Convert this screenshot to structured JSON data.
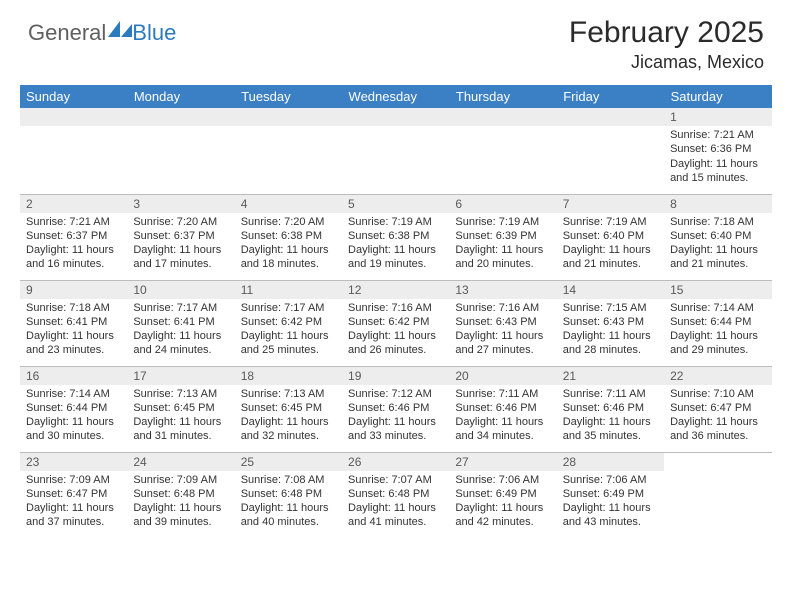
{
  "logo": {
    "general": "General",
    "blue": "Blue"
  },
  "title": "February 2025",
  "subtitle": "Jicamas, Mexico",
  "colors": {
    "header_bg": "#3b7fc4",
    "header_text": "#ffffff",
    "daynum_bg": "#ededed",
    "daynum_text": "#5a5a5a",
    "border": "#bcbcbc",
    "accent": "#2d7bbf"
  },
  "weekdays": [
    "Sunday",
    "Monday",
    "Tuesday",
    "Wednesday",
    "Thursday",
    "Friday",
    "Saturday"
  ],
  "weeks": [
    [
      null,
      null,
      null,
      null,
      null,
      null,
      {
        "n": "1",
        "sunrise": "Sunrise: 7:21 AM",
        "sunset": "Sunset: 6:36 PM",
        "daylight": "Daylight: 11 hours and 15 minutes."
      }
    ],
    [
      {
        "n": "2",
        "sunrise": "Sunrise: 7:21 AM",
        "sunset": "Sunset: 6:37 PM",
        "daylight": "Daylight: 11 hours and 16 minutes."
      },
      {
        "n": "3",
        "sunrise": "Sunrise: 7:20 AM",
        "sunset": "Sunset: 6:37 PM",
        "daylight": "Daylight: 11 hours and 17 minutes."
      },
      {
        "n": "4",
        "sunrise": "Sunrise: 7:20 AM",
        "sunset": "Sunset: 6:38 PM",
        "daylight": "Daylight: 11 hours and 18 minutes."
      },
      {
        "n": "5",
        "sunrise": "Sunrise: 7:19 AM",
        "sunset": "Sunset: 6:38 PM",
        "daylight": "Daylight: 11 hours and 19 minutes."
      },
      {
        "n": "6",
        "sunrise": "Sunrise: 7:19 AM",
        "sunset": "Sunset: 6:39 PM",
        "daylight": "Daylight: 11 hours and 20 minutes."
      },
      {
        "n": "7",
        "sunrise": "Sunrise: 7:19 AM",
        "sunset": "Sunset: 6:40 PM",
        "daylight": "Daylight: 11 hours and 21 minutes."
      },
      {
        "n": "8",
        "sunrise": "Sunrise: 7:18 AM",
        "sunset": "Sunset: 6:40 PM",
        "daylight": "Daylight: 11 hours and 21 minutes."
      }
    ],
    [
      {
        "n": "9",
        "sunrise": "Sunrise: 7:18 AM",
        "sunset": "Sunset: 6:41 PM",
        "daylight": "Daylight: 11 hours and 23 minutes."
      },
      {
        "n": "10",
        "sunrise": "Sunrise: 7:17 AM",
        "sunset": "Sunset: 6:41 PM",
        "daylight": "Daylight: 11 hours and 24 minutes."
      },
      {
        "n": "11",
        "sunrise": "Sunrise: 7:17 AM",
        "sunset": "Sunset: 6:42 PM",
        "daylight": "Daylight: 11 hours and 25 minutes."
      },
      {
        "n": "12",
        "sunrise": "Sunrise: 7:16 AM",
        "sunset": "Sunset: 6:42 PM",
        "daylight": "Daylight: 11 hours and 26 minutes."
      },
      {
        "n": "13",
        "sunrise": "Sunrise: 7:16 AM",
        "sunset": "Sunset: 6:43 PM",
        "daylight": "Daylight: 11 hours and 27 minutes."
      },
      {
        "n": "14",
        "sunrise": "Sunrise: 7:15 AM",
        "sunset": "Sunset: 6:43 PM",
        "daylight": "Daylight: 11 hours and 28 minutes."
      },
      {
        "n": "15",
        "sunrise": "Sunrise: 7:14 AM",
        "sunset": "Sunset: 6:44 PM",
        "daylight": "Daylight: 11 hours and 29 minutes."
      }
    ],
    [
      {
        "n": "16",
        "sunrise": "Sunrise: 7:14 AM",
        "sunset": "Sunset: 6:44 PM",
        "daylight": "Daylight: 11 hours and 30 minutes."
      },
      {
        "n": "17",
        "sunrise": "Sunrise: 7:13 AM",
        "sunset": "Sunset: 6:45 PM",
        "daylight": "Daylight: 11 hours and 31 minutes."
      },
      {
        "n": "18",
        "sunrise": "Sunrise: 7:13 AM",
        "sunset": "Sunset: 6:45 PM",
        "daylight": "Daylight: 11 hours and 32 minutes."
      },
      {
        "n": "19",
        "sunrise": "Sunrise: 7:12 AM",
        "sunset": "Sunset: 6:46 PM",
        "daylight": "Daylight: 11 hours and 33 minutes."
      },
      {
        "n": "20",
        "sunrise": "Sunrise: 7:11 AM",
        "sunset": "Sunset: 6:46 PM",
        "daylight": "Daylight: 11 hours and 34 minutes."
      },
      {
        "n": "21",
        "sunrise": "Sunrise: 7:11 AM",
        "sunset": "Sunset: 6:46 PM",
        "daylight": "Daylight: 11 hours and 35 minutes."
      },
      {
        "n": "22",
        "sunrise": "Sunrise: 7:10 AM",
        "sunset": "Sunset: 6:47 PM",
        "daylight": "Daylight: 11 hours and 36 minutes."
      }
    ],
    [
      {
        "n": "23",
        "sunrise": "Sunrise: 7:09 AM",
        "sunset": "Sunset: 6:47 PM",
        "daylight": "Daylight: 11 hours and 37 minutes."
      },
      {
        "n": "24",
        "sunrise": "Sunrise: 7:09 AM",
        "sunset": "Sunset: 6:48 PM",
        "daylight": "Daylight: 11 hours and 39 minutes."
      },
      {
        "n": "25",
        "sunrise": "Sunrise: 7:08 AM",
        "sunset": "Sunset: 6:48 PM",
        "daylight": "Daylight: 11 hours and 40 minutes."
      },
      {
        "n": "26",
        "sunrise": "Sunrise: 7:07 AM",
        "sunset": "Sunset: 6:48 PM",
        "daylight": "Daylight: 11 hours and 41 minutes."
      },
      {
        "n": "27",
        "sunrise": "Sunrise: 7:06 AM",
        "sunset": "Sunset: 6:49 PM",
        "daylight": "Daylight: 11 hours and 42 minutes."
      },
      {
        "n": "28",
        "sunrise": "Sunrise: 7:06 AM",
        "sunset": "Sunset: 6:49 PM",
        "daylight": "Daylight: 11 hours and 43 minutes."
      },
      null
    ]
  ]
}
